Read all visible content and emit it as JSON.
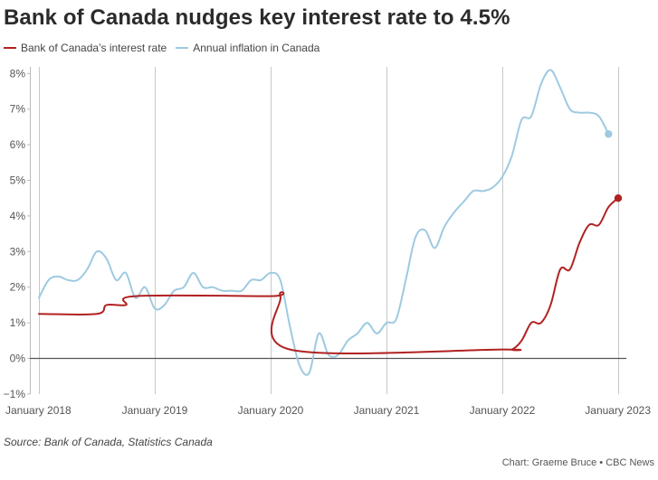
{
  "title": "Bank of Canada nudges key interest rate to 4.5%",
  "source": "Source: Bank of Canada, Statistics Canada",
  "credit": "Chart: Graeme Bruce • CBC News",
  "chart_data": {
    "type": "line",
    "title": "Bank of Canada nudges key interest rate to 4.5%",
    "xlabel": "",
    "ylabel": "",
    "ylim": [
      -1,
      8
    ],
    "y_ticks": [
      -1,
      0,
      1,
      2,
      3,
      4,
      5,
      6,
      7,
      8
    ],
    "y_tick_labels": [
      "−1%",
      "0%",
      "1%",
      "2%",
      "3%",
      "4%",
      "5%",
      "6%",
      "7%",
      "8%"
    ],
    "x_ticks": [
      "2018-01",
      "2019-01",
      "2020-01",
      "2021-01",
      "2022-01",
      "2023-01"
    ],
    "x_tick_labels": [
      "January 2018",
      "January 2019",
      "January 2020",
      "January 2021",
      "January 2022",
      "January 2023"
    ],
    "grid": "vertical",
    "legend": "top-left",
    "series": [
      {
        "name": "Bank of Canada’s interest rate",
        "color": "#b22222",
        "points": [
          [
            "2018-01",
            1.25
          ],
          [
            "2018-07",
            1.25
          ],
          [
            "2018-08",
            1.5
          ],
          [
            "2018-10",
            1.5
          ],
          [
            "2018-11",
            1.75
          ],
          [
            "2020-01",
            1.75
          ],
          [
            "2020-02",
            1.75
          ],
          [
            "2020-03",
            0.25
          ],
          [
            "2022-01",
            0.25
          ],
          [
            "2022-02",
            0.25
          ],
          [
            "2022-03",
            0.5
          ],
          [
            "2022-04",
            1.0
          ],
          [
            "2022-05",
            1.0
          ],
          [
            "2022-06",
            1.5
          ],
          [
            "2022-07",
            2.5
          ],
          [
            "2022-08",
            2.5
          ],
          [
            "2022-09",
            3.25
          ],
          [
            "2022-10",
            3.75
          ],
          [
            "2022-11",
            3.75
          ],
          [
            "2022-12",
            4.25
          ],
          [
            "2023-01",
            4.5
          ]
        ]
      },
      {
        "name": "Annual inflation in Canada",
        "color": "#9ecae1",
        "points": [
          [
            "2018-01",
            1.7
          ],
          [
            "2018-02",
            2.2
          ],
          [
            "2018-03",
            2.3
          ],
          [
            "2018-04",
            2.2
          ],
          [
            "2018-05",
            2.2
          ],
          [
            "2018-06",
            2.5
          ],
          [
            "2018-07",
            3.0
          ],
          [
            "2018-08",
            2.8
          ],
          [
            "2018-09",
            2.2
          ],
          [
            "2018-10",
            2.4
          ],
          [
            "2018-11",
            1.7
          ],
          [
            "2018-12",
            2.0
          ],
          [
            "2019-01",
            1.4
          ],
          [
            "2019-02",
            1.5
          ],
          [
            "2019-03",
            1.9
          ],
          [
            "2019-04",
            2.0
          ],
          [
            "2019-05",
            2.4
          ],
          [
            "2019-06",
            2.0
          ],
          [
            "2019-07",
            2.0
          ],
          [
            "2019-08",
            1.9
          ],
          [
            "2019-09",
            1.9
          ],
          [
            "2019-10",
            1.9
          ],
          [
            "2019-11",
            2.2
          ],
          [
            "2019-12",
            2.2
          ],
          [
            "2020-01",
            2.4
          ],
          [
            "2020-02",
            2.2
          ],
          [
            "2020-03",
            0.9
          ],
          [
            "2020-04",
            -0.2
          ],
          [
            "2020-05",
            -0.4
          ],
          [
            "2020-06",
            0.7
          ],
          [
            "2020-07",
            0.1
          ],
          [
            "2020-08",
            0.1
          ],
          [
            "2020-09",
            0.5
          ],
          [
            "2020-10",
            0.7
          ],
          [
            "2020-11",
            1.0
          ],
          [
            "2020-12",
            0.7
          ],
          [
            "2021-01",
            1.0
          ],
          [
            "2021-02",
            1.1
          ],
          [
            "2021-03",
            2.2
          ],
          [
            "2021-04",
            3.4
          ],
          [
            "2021-05",
            3.6
          ],
          [
            "2021-06",
            3.1
          ],
          [
            "2021-07",
            3.7
          ],
          [
            "2021-08",
            4.1
          ],
          [
            "2021-09",
            4.4
          ],
          [
            "2021-10",
            4.7
          ],
          [
            "2021-11",
            4.7
          ],
          [
            "2021-12",
            4.8
          ],
          [
            "2022-01",
            5.1
          ],
          [
            "2022-02",
            5.7
          ],
          [
            "2022-03",
            6.7
          ],
          [
            "2022-04",
            6.8
          ],
          [
            "2022-05",
            7.7
          ],
          [
            "2022-06",
            8.1
          ],
          [
            "2022-07",
            7.6
          ],
          [
            "2022-08",
            7.0
          ],
          [
            "2022-09",
            6.9
          ],
          [
            "2022-10",
            6.9
          ],
          [
            "2022-11",
            6.8
          ],
          [
            "2022-12",
            6.3
          ]
        ]
      }
    ]
  }
}
